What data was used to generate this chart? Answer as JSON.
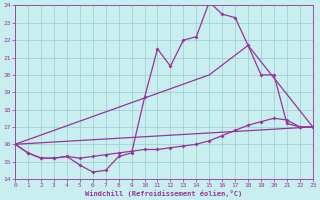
{
  "xlabel": "Windchill (Refroidissement éolien,°C)",
  "xlim": [
    0,
    23
  ],
  "ylim": [
    14,
    24
  ],
  "yticks": [
    14,
    15,
    16,
    17,
    18,
    19,
    20,
    21,
    22,
    23,
    24
  ],
  "xticks": [
    0,
    1,
    2,
    3,
    4,
    5,
    6,
    7,
    8,
    9,
    10,
    11,
    12,
    13,
    14,
    15,
    16,
    17,
    18,
    19,
    20,
    21,
    22,
    23
  ],
  "background_color": "#c8eef0",
  "line_color": "#993399",
  "grid_color": "#99cccc",
  "series1_x": [
    0,
    1,
    2,
    3,
    4,
    5,
    6,
    7,
    8,
    9,
    10,
    11,
    12,
    13,
    14,
    15,
    16,
    17,
    18,
    19,
    20,
    21,
    22,
    23
  ],
  "series1_y": [
    16.0,
    15.5,
    15.2,
    15.2,
    15.3,
    14.8,
    14.4,
    14.5,
    15.3,
    15.5,
    18.7,
    21.5,
    20.5,
    22.0,
    22.2,
    24.2,
    23.5,
    23.3,
    21.7,
    20.0,
    20.0,
    17.2,
    17.0,
    17.0
  ],
  "series2_x": [
    0,
    1,
    2,
    3,
    4,
    5,
    6,
    7,
    8,
    9,
    10,
    11,
    12,
    13,
    14,
    15,
    16,
    17,
    18,
    19,
    20,
    21,
    22,
    23
  ],
  "series2_y": [
    16.0,
    15.5,
    15.2,
    15.2,
    15.3,
    15.2,
    15.3,
    15.4,
    15.5,
    15.6,
    15.7,
    15.7,
    15.8,
    15.9,
    16.0,
    16.2,
    16.5,
    16.8,
    17.1,
    17.3,
    17.5,
    17.4,
    17.0,
    17.0
  ],
  "series3_x": [
    0,
    23
  ],
  "series3_y": [
    16.0,
    17.0
  ],
  "series4_x": [
    0,
    15,
    18,
    23
  ],
  "series4_y": [
    16.0,
    20.0,
    21.7,
    17.0
  ]
}
